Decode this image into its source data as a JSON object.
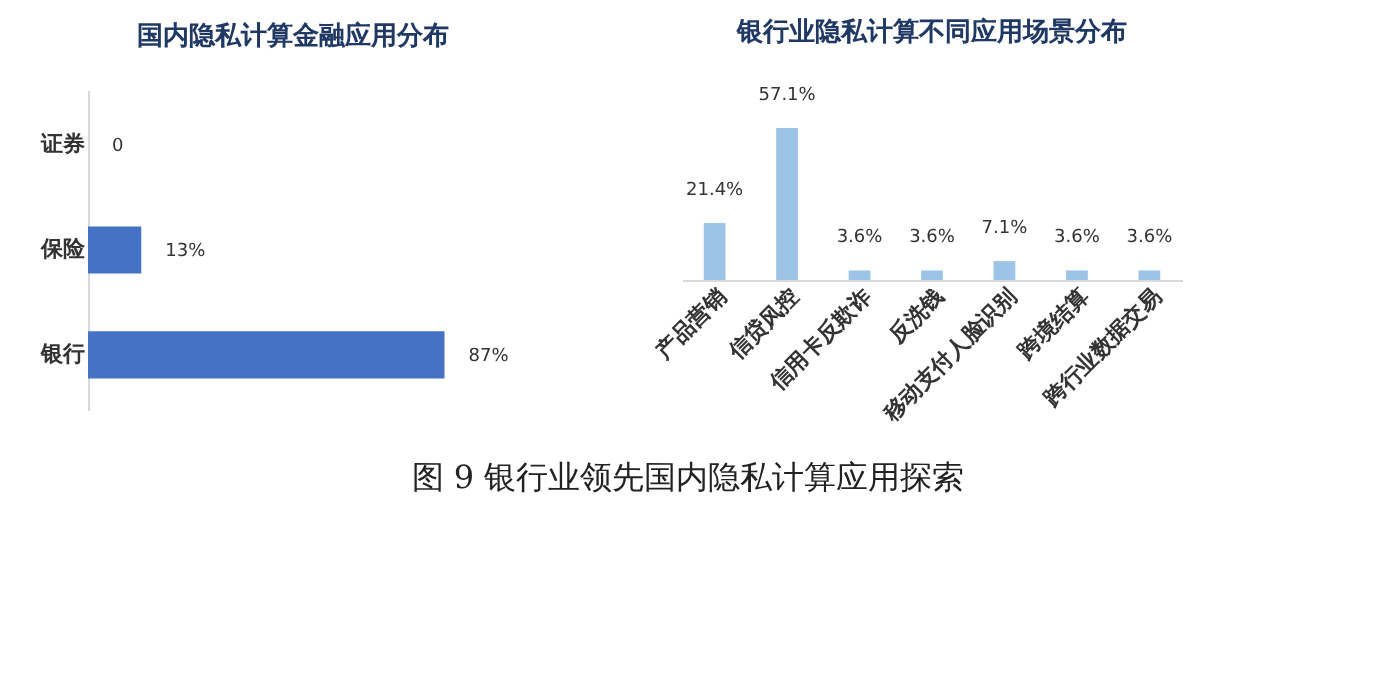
{
  "chart_data": [
    {
      "type": "bar",
      "orientation": "horizontal",
      "title": "国内隐私计算金融应用分布",
      "categories": [
        "证券",
        "保险",
        "银行"
      ],
      "values": [
        0,
        13,
        87
      ],
      "value_labels": [
        "0",
        "13%",
        "87%"
      ],
      "color": "#4472c4"
    },
    {
      "type": "bar",
      "title": "银行业隐私计算不同应用场景分布",
      "categories": [
        "产品营销",
        "信贷风控",
        "信用卡反欺诈",
        "反洗钱",
        "移动支付人脸识别",
        "跨境结算",
        "跨行业数据交易"
      ],
      "values": [
        21.4,
        57.1,
        3.6,
        3.6,
        7.1,
        3.6,
        3.6
      ],
      "value_labels": [
        "21.4%",
        "57.1%",
        "3.6%",
        "3.6%",
        "7.1%",
        "3.6%",
        "3.6%"
      ],
      "color": "#9dc3e6",
      "annotations": [
        "图 9 银行业领先国内隐私计算应用探索"
      ]
    }
  ]
}
